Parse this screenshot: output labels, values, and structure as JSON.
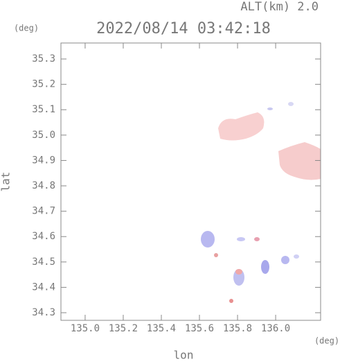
{
  "chart_data": {
    "type": "map",
    "title": "2022/08/14 03:42:18",
    "subtitle": "ALT(km) 2.0",
    "x_label": "lon",
    "y_label": "lat",
    "x_unit": "(deg)",
    "y_unit": "(deg)",
    "xlim": [
      134.873,
      136.236
    ],
    "ylim": [
      34.27,
      35.363
    ],
    "xticks": [
      {
        "value": 135,
        "label": "135.0"
      },
      135.2,
      135.4,
      135.6,
      135.8,
      {
        "value": 136,
        "label": "136.0"
      }
    ],
    "yticks": [
      35.3,
      35.2,
      35.1,
      {
        "value": 35,
        "label": "35.0"
      },
      34.9,
      34.8,
      34.7,
      34.6,
      34.5,
      34.4,
      34.3
    ]
  }
}
